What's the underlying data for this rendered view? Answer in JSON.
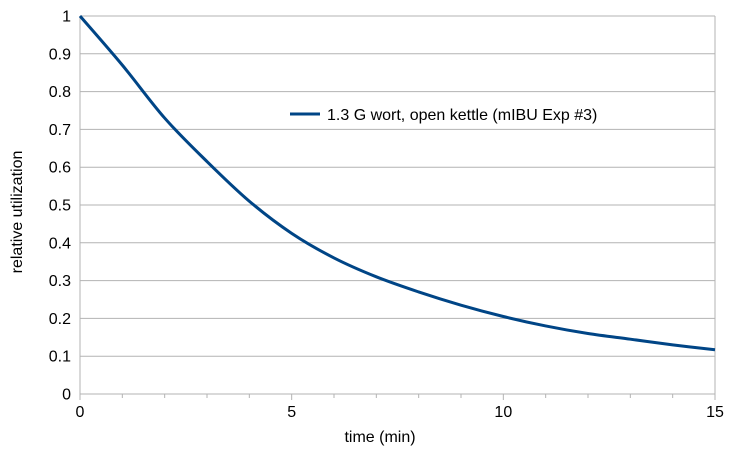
{
  "chart_data": {
    "type": "line",
    "title": "",
    "xlabel": "time (min)",
    "ylabel": "relative utilization",
    "xlim": [
      0,
      15
    ],
    "ylim": [
      0,
      1
    ],
    "x_ticks": [
      "0",
      "5",
      "10",
      "15"
    ],
    "y_ticks": [
      "0",
      "0.1",
      "0.2",
      "0.3",
      "0.4",
      "0.5",
      "0.6",
      "0.7",
      "0.8",
      "0.9",
      "1"
    ],
    "grid": "horizontal",
    "legend_position": "inside-top-right",
    "series": [
      {
        "name": "1.3 G wort, open kettle (mIBU Exp #3)",
        "color": "#004586",
        "x": [
          0,
          1,
          2,
          3,
          4,
          5,
          6,
          7,
          8,
          9,
          10,
          11,
          12,
          13,
          14,
          15
        ],
        "y": [
          1.0,
          0.87,
          0.73,
          0.615,
          0.51,
          0.425,
          0.36,
          0.31,
          0.27,
          0.235,
          0.205,
          0.18,
          0.16,
          0.145,
          0.13,
          0.117
        ]
      }
    ]
  }
}
